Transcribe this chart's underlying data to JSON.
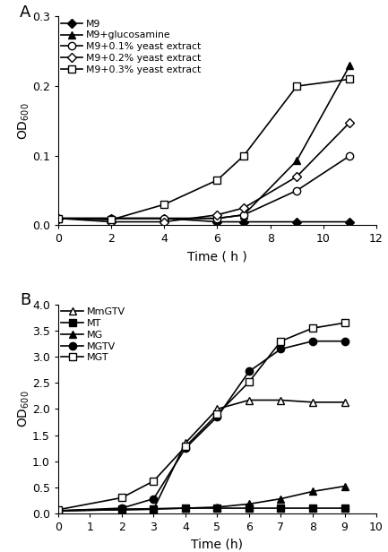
{
  "panel_A": {
    "title": "A",
    "xlabel": "Time ( h )",
    "ylabel": "OD600",
    "xlim": [
      0,
      12
    ],
    "ylim": [
      0,
      0.3
    ],
    "yticks": [
      0.0,
      0.1,
      0.2,
      0.3
    ],
    "xticks": [
      0,
      2,
      4,
      6,
      8,
      10,
      12
    ],
    "series": [
      {
        "label": "M9",
        "x": [
          0,
          2,
          4,
          6,
          7,
          9,
          11
        ],
        "y": [
          0.01,
          0.01,
          0.01,
          0.005,
          0.005,
          0.005,
          0.005
        ],
        "marker": "D",
        "markerfacecolor": "black",
        "markeredgecolor": "black",
        "linestyle": "-",
        "color": "black",
        "markersize": 5
      },
      {
        "label": "M9+glucosamine",
        "x": [
          0,
          2,
          4,
          6,
          7,
          9,
          11
        ],
        "y": [
          0.01,
          0.01,
          0.01,
          0.01,
          0.015,
          0.093,
          0.23
        ],
        "marker": "^",
        "markerfacecolor": "black",
        "markeredgecolor": "black",
        "linestyle": "-",
        "color": "black",
        "markersize": 6
      },
      {
        "label": "M9+0.1% yeast extract",
        "x": [
          0,
          2,
          4,
          6,
          7,
          9,
          11
        ],
        "y": [
          0.01,
          0.01,
          0.01,
          0.01,
          0.015,
          0.05,
          0.1
        ],
        "marker": "o",
        "markerfacecolor": "white",
        "markeredgecolor": "black",
        "linestyle": "-",
        "color": "black",
        "markersize": 6
      },
      {
        "label": "M9+0.2% yeast extract",
        "x": [
          0,
          2,
          4,
          6,
          7,
          9,
          11
        ],
        "y": [
          0.01,
          0.005,
          0.005,
          0.015,
          0.025,
          0.07,
          0.148
        ],
        "marker": "D",
        "markerfacecolor": "white",
        "markeredgecolor": "black",
        "linestyle": "-",
        "color": "black",
        "markersize": 5
      },
      {
        "label": "M9+0.3% yeast extract",
        "x": [
          0,
          2,
          4,
          6,
          7,
          9,
          11
        ],
        "y": [
          0.01,
          0.008,
          0.03,
          0.065,
          0.1,
          0.2,
          0.21
        ],
        "marker": "s",
        "markerfacecolor": "white",
        "markeredgecolor": "black",
        "linestyle": "-",
        "color": "black",
        "markersize": 6
      }
    ]
  },
  "panel_B": {
    "title": "B",
    "xlabel": "Time (h)",
    "ylabel": "OD600",
    "xlim": [
      0,
      10
    ],
    "ylim": [
      0,
      4.0
    ],
    "yticks": [
      0.0,
      0.5,
      1.0,
      1.5,
      2.0,
      2.5,
      3.0,
      3.5,
      4.0
    ],
    "xticks": [
      0,
      1,
      2,
      3,
      4,
      5,
      6,
      7,
      8,
      9,
      10
    ],
    "series": [
      {
        "label": "MmGTV",
        "x": [
          0,
          2,
          3,
          4,
          5,
          6,
          7,
          8,
          9
        ],
        "y": [
          0.05,
          0.07,
          0.08,
          1.35,
          2.0,
          2.17,
          2.17,
          2.13,
          2.13
        ],
        "marker": "^",
        "markerfacecolor": "white",
        "markeredgecolor": "black",
        "linestyle": "-",
        "color": "black",
        "markersize": 6
      },
      {
        "label": "MT",
        "x": [
          0,
          2,
          3,
          4,
          5,
          6,
          7,
          8,
          9
        ],
        "y": [
          0.05,
          0.08,
          0.09,
          0.1,
          0.1,
          0.1,
          0.1,
          0.1,
          0.1
        ],
        "marker": "s",
        "markerfacecolor": "black",
        "markeredgecolor": "black",
        "linestyle": "-",
        "color": "black",
        "markersize": 6
      },
      {
        "label": "MG",
        "x": [
          0,
          2,
          3,
          4,
          5,
          6,
          7,
          8,
          9
        ],
        "y": [
          0.05,
          0.07,
          0.08,
          0.1,
          0.12,
          0.18,
          0.28,
          0.42,
          0.52
        ],
        "marker": "^",
        "markerfacecolor": "black",
        "markeredgecolor": "black",
        "linestyle": "-",
        "color": "black",
        "markersize": 6
      },
      {
        "label": "MGTV",
        "x": [
          0,
          2,
          3,
          4,
          5,
          6,
          7,
          8,
          9
        ],
        "y": [
          0.05,
          0.1,
          0.28,
          1.25,
          1.85,
          2.72,
          3.15,
          3.3,
          3.3
        ],
        "marker": "o",
        "markerfacecolor": "black",
        "markeredgecolor": "black",
        "linestyle": "-",
        "color": "black",
        "markersize": 6
      },
      {
        "label": "MGT",
        "x": [
          0,
          2,
          3,
          4,
          5,
          6,
          7,
          8,
          9
        ],
        "y": [
          0.07,
          0.3,
          0.62,
          1.28,
          1.9,
          2.52,
          3.3,
          3.55,
          3.65
        ],
        "marker": "s",
        "markerfacecolor": "white",
        "markeredgecolor": "black",
        "linestyle": "-",
        "color": "black",
        "markersize": 6
      }
    ]
  }
}
